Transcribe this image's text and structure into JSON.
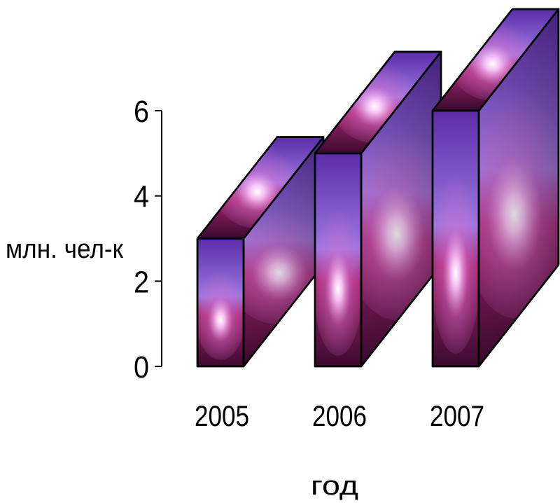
{
  "chart_data": {
    "type": "bar",
    "style": "3d-box",
    "categories": [
      "2005",
      "2006",
      "2007"
    ],
    "values": [
      3,
      5,
      6
    ],
    "xlabel": "год",
    "ylabel": "млн. чел-к",
    "yticks": [
      "0",
      "2",
      "4",
      "6"
    ],
    "ylim": [
      0,
      6
    ],
    "grid": false,
    "legend": "none"
  },
  "colors": {
    "deep": "#3b0a2e",
    "magenta": "#a0246e",
    "violet": "#5b2ca8",
    "lavender": "#9a78e0",
    "glow": "#ffe6ff",
    "outline": "#000000"
  }
}
